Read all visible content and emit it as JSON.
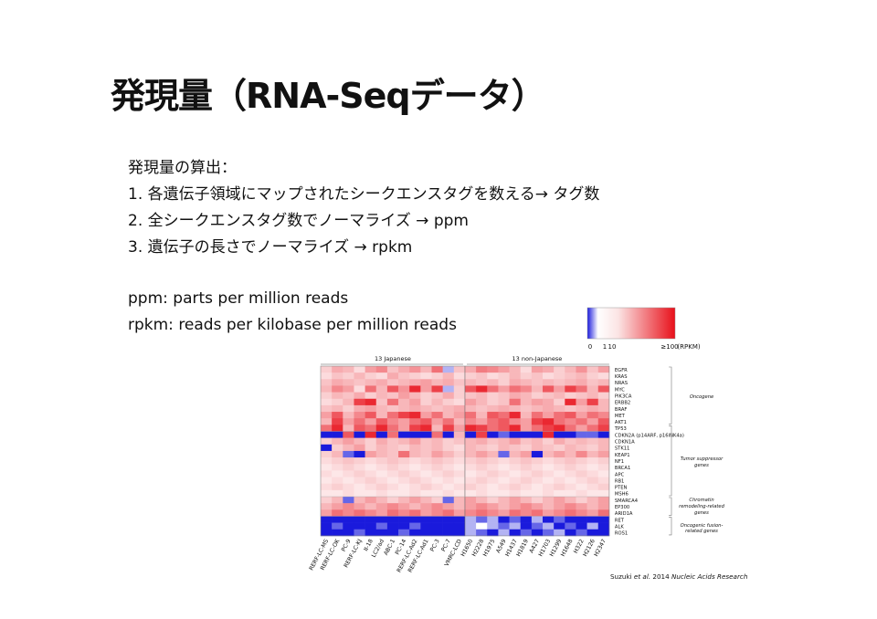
{
  "slide": {
    "title": "発現量（RNA-Seqデータ）",
    "body": {
      "heading": "発現量の算出：",
      "steps": [
        "1. 各遺伝子領域にマップされたシークエンスタグを数える→ タグ数",
        "2. 全シークエンスタグ数でノーマライズ → ppm",
        "3. 遺伝子の長さでノーマライズ → rpkm"
      ],
      "definitions": [
        "ppm: parts per million reads",
        "rpkm: reads per kilobase per million reads"
      ]
    },
    "citation": {
      "author": "Suzuki ",
      "etal": "et al.",
      "year": " 2014 ",
      "journal": "Nucleic Acids Research"
    }
  },
  "chart_data": {
    "type": "heatmap",
    "colorbar": {
      "ticks": [
        "0",
        "1",
        "10",
        "≥100",
        "(RPKM)"
      ],
      "colors": [
        "#1a1adc",
        "#ffffff",
        "#e8101a"
      ]
    },
    "column_groups": [
      "13 Japanese",
      "13 non-Japanese"
    ],
    "columns": [
      "RERF-LC-MS",
      "RERF-LC-OK",
      "PC-9",
      "RERF-LC-KJ",
      "II-18",
      "LC2/ad",
      "ABC-1",
      "PC-14",
      "RERF-LC-Ad2",
      "RERF-LC-Ad1",
      "PC-3",
      "PC-7",
      "VMRC-LCD",
      "H1650",
      "H2228",
      "H1975",
      "A549",
      "H1437",
      "H1819",
      "A427",
      "H1703",
      "H1299",
      "H1648",
      "H322",
      "H2126",
      "H2347"
    ],
    "rows": [
      "EGFR",
      "KRAS",
      "NRAS",
      "MYC",
      "PIK3CA",
      "ERBB2",
      "BRAF",
      "MET",
      "AKT1",
      "TP53",
      "CDKN2A (p14ARF, p16INK4a)",
      "CDKN1A",
      "STK11",
      "KEAP1",
      "NF1",
      "BRCA1",
      "APC",
      "RB1",
      "PTEN",
      "MSH6",
      "SMARCA4",
      "EP300",
      "ARID1A",
      "RET",
      "ALK",
      "ROS1"
    ],
    "row_groups": [
      {
        "label": "Oncogene"
      },
      {
        "label": "Tumor suppressor genes"
      },
      {
        "label": "Chromatin remodeling-related genes"
      },
      {
        "label": "Oncogenic fusion-related genes"
      }
    ],
    "values": [
      [
        20,
        35,
        30,
        15,
        40,
        50,
        25,
        35,
        45,
        30,
        60,
        -1,
        25,
        35,
        55,
        50,
        40,
        30,
        15,
        40,
        35,
        20,
        30,
        45,
        25,
        40
      ],
      [
        15,
        25,
        20,
        30,
        20,
        15,
        35,
        25,
        20,
        15,
        20,
        30,
        15,
        20,
        25,
        15,
        20,
        30,
        20,
        25,
        15,
        20,
        25,
        30,
        20,
        15
      ],
      [
        25,
        35,
        30,
        25,
        30,
        35,
        25,
        30,
        35,
        40,
        30,
        35,
        25,
        30,
        25,
        30,
        20,
        35,
        30,
        25,
        30,
        25,
        30,
        35,
        25,
        30
      ],
      [
        30,
        50,
        40,
        15,
        60,
        30,
        70,
        45,
        90,
        40,
        80,
        -1,
        20,
        70,
        90,
        60,
        40,
        60,
        50,
        30,
        70,
        40,
        80,
        60,
        30,
        70
      ],
      [
        20,
        30,
        25,
        35,
        20,
        30,
        25,
        40,
        30,
        20,
        25,
        35,
        20,
        25,
        30,
        20,
        25,
        35,
        30,
        20,
        25,
        30,
        20,
        25,
        30,
        20
      ],
      [
        15,
        20,
        30,
        80,
        90,
        25,
        60,
        30,
        40,
        20,
        30,
        20,
        15,
        40,
        30,
        20,
        25,
        60,
        30,
        40,
        35,
        20,
        90,
        40,
        80,
        30
      ],
      [
        25,
        30,
        20,
        35,
        40,
        30,
        25,
        30,
        35,
        30,
        25,
        30,
        35,
        30,
        25,
        30,
        35,
        30,
        25,
        30,
        35,
        30,
        25,
        30,
        35,
        30
      ],
      [
        40,
        70,
        30,
        50,
        70,
        30,
        60,
        80,
        90,
        40,
        60,
        30,
        40,
        60,
        30,
        70,
        60,
        90,
        30,
        60,
        40,
        60,
        70,
        40,
        60,
        50
      ],
      [
        30,
        80,
        40,
        60,
        40,
        70,
        50,
        40,
        60,
        70,
        40,
        60,
        30,
        50,
        40,
        60,
        70,
        50,
        40,
        80,
        90,
        60,
        50,
        60,
        40,
        70
      ],
      [
        60,
        90,
        30,
        70,
        60,
        90,
        60,
        40,
        80,
        90,
        30,
        80,
        40,
        90,
        80,
        60,
        70,
        90,
        40,
        60,
        80,
        90,
        60,
        40,
        60,
        80
      ],
      [
        -3,
        -3,
        70,
        -3,
        90,
        -3,
        60,
        -3,
        -3,
        -3,
        60,
        -3,
        30,
        -3,
        80,
        -3,
        -2,
        -3,
        -3,
        -3,
        90,
        -3,
        -3,
        -2,
        -2,
        -3
      ],
      [
        20,
        30,
        40,
        30,
        20,
        35,
        25,
        30,
        40,
        25,
        30,
        20,
        25,
        30,
        35,
        25,
        30,
        40,
        25,
        30,
        20,
        35,
        25,
        30,
        25,
        30
      ],
      [
        -3,
        20,
        30,
        40,
        20,
        30,
        25,
        20,
        30,
        25,
        30,
        20,
        15,
        30,
        25,
        20,
        30,
        25,
        20,
        30,
        25,
        20,
        30,
        25,
        20,
        30
      ],
      [
        20,
        30,
        -2,
        -3,
        40,
        30,
        25,
        60,
        30,
        25,
        40,
        30,
        20,
        30,
        40,
        30,
        -2,
        30,
        40,
        -3,
        30,
        40,
        30,
        50,
        30,
        40
      ],
      [
        15,
        20,
        25,
        20,
        15,
        20,
        25,
        20,
        15,
        20,
        25,
        20,
        15,
        20,
        25,
        20,
        15,
        20,
        25,
        20,
        15,
        20,
        25,
        20,
        15,
        20
      ],
      [
        10,
        15,
        20,
        15,
        10,
        15,
        20,
        15,
        10,
        15,
        20,
        15,
        10,
        15,
        20,
        15,
        10,
        15,
        20,
        15,
        10,
        15,
        20,
        15,
        10,
        15
      ],
      [
        15,
        10,
        15,
        20,
        15,
        10,
        15,
        20,
        15,
        10,
        15,
        20,
        15,
        10,
        15,
        20,
        15,
        10,
        15,
        20,
        15,
        10,
        15,
        20,
        15,
        10
      ],
      [
        10,
        15,
        10,
        15,
        20,
        15,
        10,
        15,
        20,
        15,
        10,
        15,
        10,
        15,
        20,
        15,
        10,
        15,
        20,
        15,
        10,
        15,
        10,
        15,
        20,
        15
      ],
      [
        15,
        20,
        15,
        10,
        15,
        20,
        15,
        10,
        15,
        20,
        15,
        10,
        15,
        20,
        15,
        10,
        15,
        20,
        15,
        10,
        15,
        20,
        15,
        10,
        15,
        20
      ],
      [
        10,
        10,
        15,
        10,
        10,
        15,
        10,
        10,
        15,
        10,
        10,
        15,
        10,
        10,
        15,
        10,
        10,
        15,
        10,
        10,
        15,
        10,
        10,
        15,
        10,
        10
      ],
      [
        20,
        30,
        -2,
        30,
        40,
        30,
        20,
        30,
        40,
        30,
        20,
        -2,
        30,
        40,
        30,
        20,
        30,
        40,
        30,
        20,
        30,
        40,
        30,
        20,
        30,
        40
      ],
      [
        30,
        40,
        50,
        40,
        30,
        40,
        50,
        40,
        30,
        40,
        50,
        40,
        30,
        40,
        50,
        40,
        30,
        40,
        50,
        40,
        30,
        40,
        50,
        40,
        30,
        40
      ],
      [
        40,
        60,
        50,
        60,
        50,
        40,
        60,
        50,
        60,
        40,
        50,
        60,
        40,
        50,
        60,
        50,
        40,
        60,
        50,
        60,
        40,
        50,
        60,
        50,
        40,
        60
      ],
      [
        -3,
        -3,
        -3,
        -3,
        -3,
        -3,
        -3,
        -3,
        -3,
        -3,
        -3,
        -3,
        -3,
        -1,
        -2,
        -1,
        -3,
        -2,
        -3,
        -1,
        -3,
        -2,
        -3,
        -3,
        -3,
        -3
      ],
      [
        -3,
        -2,
        -3,
        -3,
        -3,
        -2,
        -3,
        -3,
        -2,
        -3,
        -3,
        -3,
        -3,
        -1,
        0,
        -1,
        -2,
        -1,
        -3,
        -2,
        -1,
        -3,
        -2,
        -3,
        -1,
        -3
      ],
      [
        -3,
        -3,
        -3,
        -2,
        -3,
        -3,
        -3,
        -2,
        -3,
        -3,
        -3,
        -3,
        -3,
        -1,
        -2,
        -3,
        -1,
        -3,
        -2,
        -3,
        -2,
        -1,
        -3,
        -2,
        -3,
        -3
      ]
    ]
  }
}
